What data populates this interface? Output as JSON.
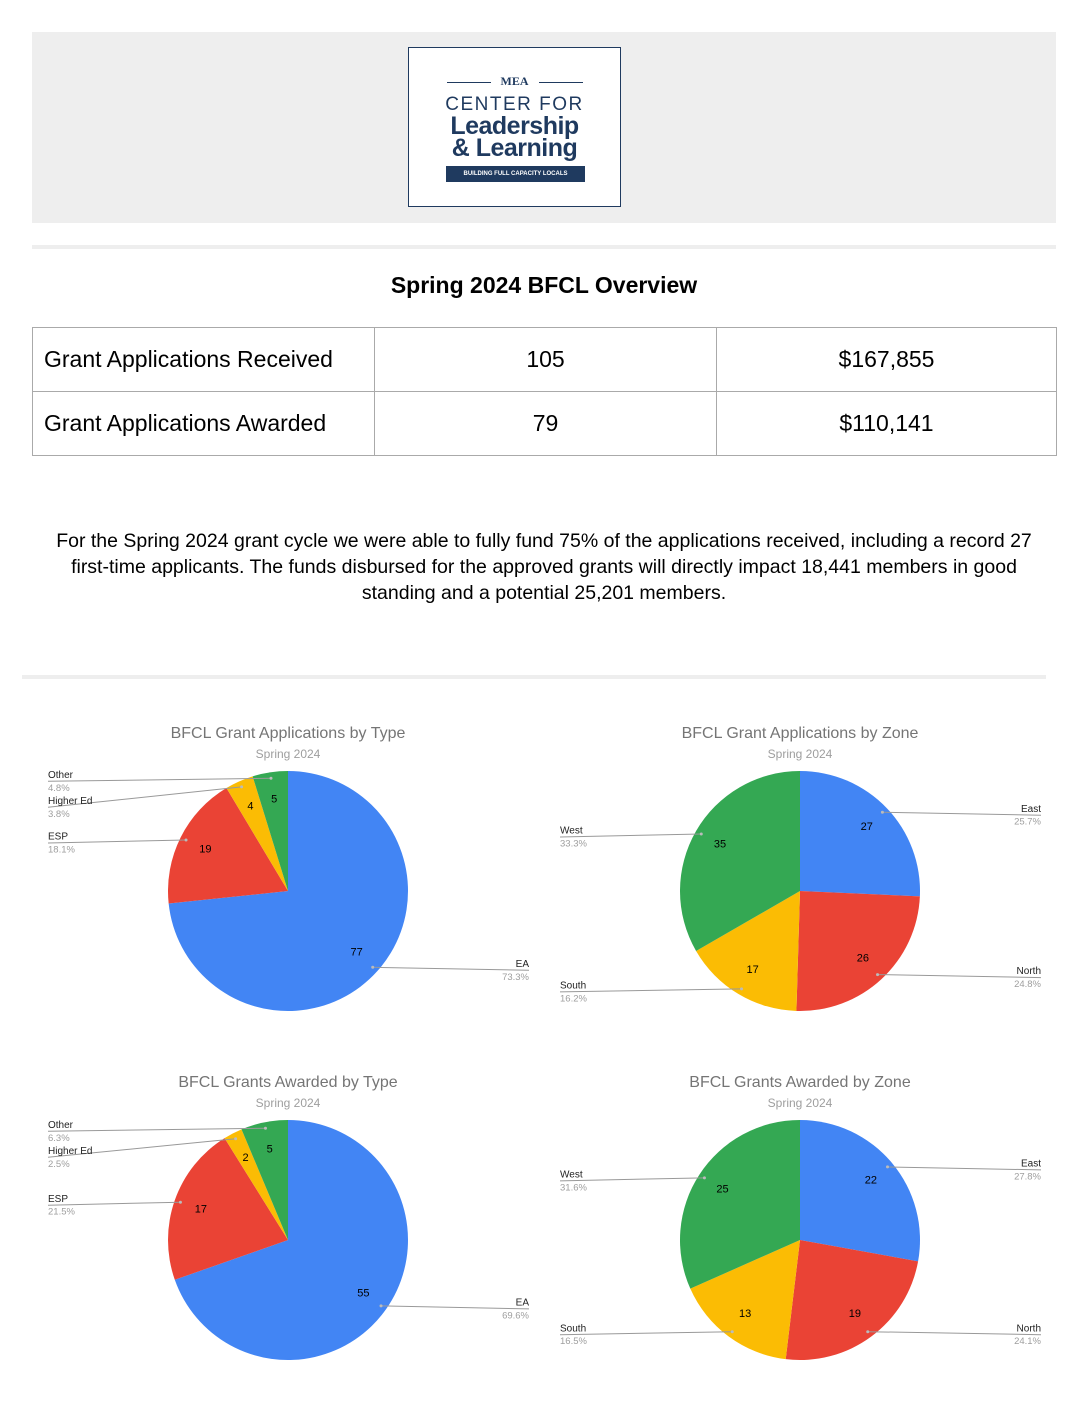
{
  "header": {
    "org": "MEA",
    "line1": "CENTER FOR",
    "line2": "Leadership",
    "line3": "& Learning",
    "tagline": "BUILDING FULL CAPACITY LOCALS"
  },
  "title": "Spring 2024 BFCL Overview",
  "table": {
    "rows": [
      [
        "Grant Applications Received",
        "105",
        "$167,855"
      ],
      [
        "Grant Applications Awarded",
        "79",
        "$110,141"
      ]
    ]
  },
  "paragraph": "For the Spring 2024 grant cycle we were able to fully fund 75% of the applications received, including a record 27 first-time applicants. The funds disbursed for the approved grants will directly impact 18,441 members in good standing and a potential 25,201 members.",
  "chart_data": [
    {
      "type": "pie",
      "title": "BFCL Grant Applications by Type",
      "subtitle": "Spring 2024",
      "categories": [
        "EA",
        "ESP",
        "Higher Ed",
        "Other"
      ],
      "values": [
        77,
        19,
        4,
        5
      ],
      "percent_labels": [
        "73.3%",
        "18.1%",
        "3.8%",
        "4.8%"
      ],
      "colors": [
        "#4285f4",
        "#ea4335",
        "#fbbc04",
        "#34a853"
      ]
    },
    {
      "type": "pie",
      "title": "BFCL Grant Applications by Zone",
      "subtitle": "Spring 2024",
      "categories": [
        "East",
        "North",
        "South",
        "West"
      ],
      "values": [
        27,
        26,
        17,
        35
      ],
      "percent_labels": [
        "25.7%",
        "24.8%",
        "16.2%",
        "33.3%"
      ],
      "colors": [
        "#4285f4",
        "#ea4335",
        "#fbbc04",
        "#34a853"
      ]
    },
    {
      "type": "pie",
      "title": "BFCL Grants Awarded by Type",
      "subtitle": "Spring 2024",
      "categories": [
        "EA",
        "ESP",
        "Higher Ed",
        "Other"
      ],
      "values": [
        55,
        17,
        2,
        5
      ],
      "percent_labels": [
        "69.6%",
        "21.5%",
        "2.5%",
        "6.3%"
      ],
      "colors": [
        "#4285f4",
        "#ea4335",
        "#fbbc04",
        "#34a853"
      ]
    },
    {
      "type": "pie",
      "title": "BFCL Grants Awarded by Zone",
      "subtitle": "Spring 2024",
      "categories": [
        "East",
        "North",
        "South",
        "West"
      ],
      "values": [
        22,
        19,
        13,
        25
      ],
      "percent_labels": [
        "27.8%",
        "24.1%",
        "16.5%",
        "31.6%"
      ],
      "colors": [
        "#4285f4",
        "#ea4335",
        "#fbbc04",
        "#34a853"
      ]
    }
  ]
}
